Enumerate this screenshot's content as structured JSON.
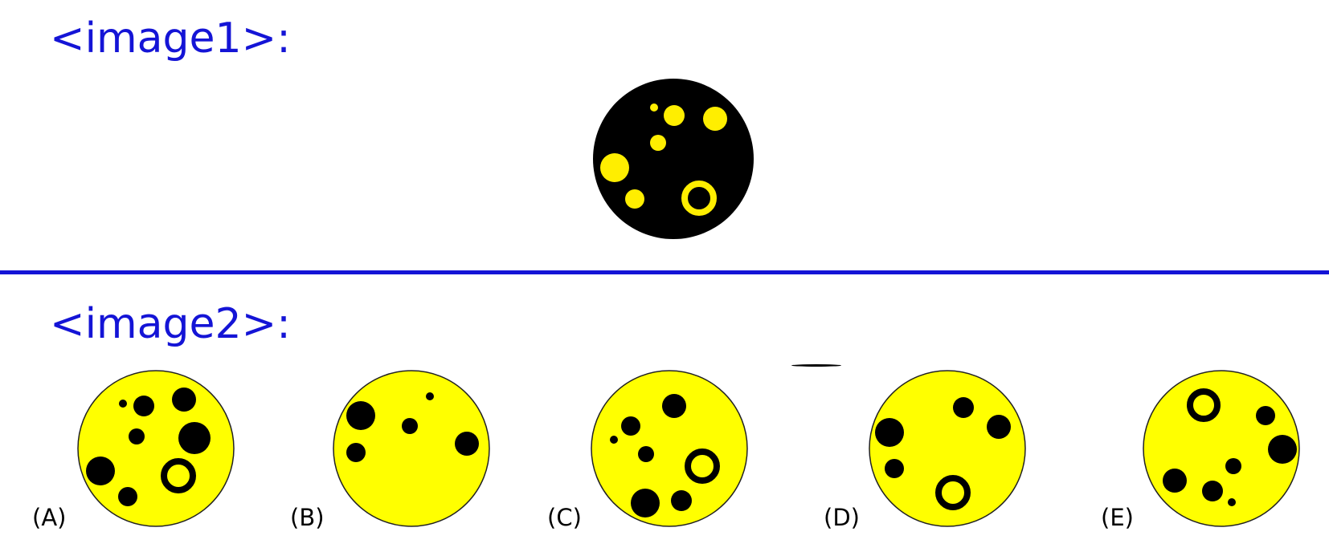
{
  "labels": {
    "image1": "<image1>:",
    "image2": "<image2>:"
  },
  "reference": {
    "fill": "#000000",
    "dot_color": "#ffee00"
  },
  "options": [
    {
      "key": "A",
      "label": "(A)"
    },
    {
      "key": "B",
      "label": "(B)"
    },
    {
      "key": "C",
      "label": "(C)"
    },
    {
      "key": "D",
      "label": "(D)"
    },
    {
      "key": "E",
      "label": "(E)"
    }
  ],
  "colors": {
    "accent_blue": "#1414d6",
    "option_fill": "#ffff00",
    "option_dots": "#000000"
  }
}
